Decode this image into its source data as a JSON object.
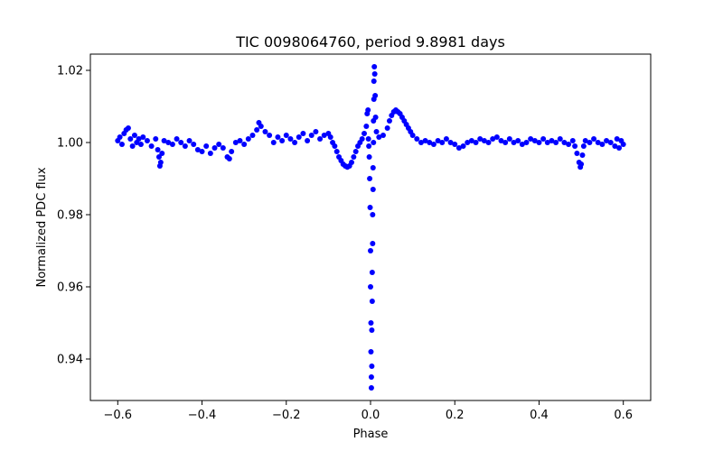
{
  "chart_data": {
    "type": "scatter",
    "title": "TIC 0098064760, period 9.8981 days",
    "xlabel": "Phase",
    "ylabel": "Normalized PDC flux",
    "xlim": [
      -0.665,
      0.665
    ],
    "ylim": [
      0.9285,
      1.0245
    ],
    "grid": false,
    "marker_color": "#0000ff",
    "x_ticks": [
      -0.6,
      -0.4,
      -0.2,
      0.0,
      0.2,
      0.4,
      0.6
    ],
    "x_tick_labels": [
      "−0.6",
      "−0.4",
      "−0.2",
      "0.0",
      "0.2",
      "0.4",
      "0.6"
    ],
    "y_ticks": [
      0.94,
      0.96,
      0.98,
      1.0,
      1.02
    ],
    "y_tick_labels": [
      "0.94",
      "0.96",
      "0.98",
      "1.00",
      "1.02"
    ],
    "series": [
      {
        "name": "phase-folded light curve",
        "description_of_shape": "flat baseline near 1.000 with scatter; primary eclipse at phase 0.0 reaching ~0.932; flare-like spike at phase ~0.0 to ~1.021; dip near phase -0.05 (~0.993); bump near phase 0.06 (~1.009); small dips near phase -0.5 and 0.5 (~0.993)",
        "points": [
          [
            -0.6,
            1.0005
          ],
          [
            -0.595,
            1.0015
          ],
          [
            -0.59,
            0.9995
          ],
          [
            -0.585,
            1.0025
          ],
          [
            -0.58,
            1.0035
          ],
          [
            -0.575,
            1.004
          ],
          [
            -0.57,
            1.001
          ],
          [
            -0.565,
            0.999
          ],
          [
            -0.56,
            1.002
          ],
          [
            -0.555,
            1.0
          ],
          [
            -0.55,
            1.001
          ],
          [
            -0.545,
            0.9995
          ],
          [
            -0.54,
            1.0015
          ],
          [
            -0.53,
            1.0005
          ],
          [
            -0.52,
            0.999
          ],
          [
            -0.51,
            1.001
          ],
          [
            -0.505,
            0.998
          ],
          [
            -0.502,
            0.996
          ],
          [
            -0.5,
            0.9935
          ],
          [
            -0.498,
            0.9945
          ],
          [
            -0.495,
            0.997
          ],
          [
            -0.49,
            1.0005
          ],
          [
            -0.48,
            1.0
          ],
          [
            -0.47,
            0.9995
          ],
          [
            -0.46,
            1.001
          ],
          [
            -0.45,
            1.0
          ],
          [
            -0.44,
            0.999
          ],
          [
            -0.43,
            1.0005
          ],
          [
            -0.42,
            0.9995
          ],
          [
            -0.41,
            0.998
          ],
          [
            -0.4,
            0.9975
          ],
          [
            -0.39,
            0.999
          ],
          [
            -0.38,
            0.997
          ],
          [
            -0.37,
            0.9985
          ],
          [
            -0.36,
            0.9995
          ],
          [
            -0.35,
            0.9985
          ],
          [
            -0.34,
            0.996
          ],
          [
            -0.335,
            0.9955
          ],
          [
            -0.33,
            0.9975
          ],
          [
            -0.32,
            1.0
          ],
          [
            -0.31,
            1.0005
          ],
          [
            -0.3,
            0.9995
          ],
          [
            -0.29,
            1.001
          ],
          [
            -0.28,
            1.002
          ],
          [
            -0.27,
            1.0035
          ],
          [
            -0.265,
            1.0055
          ],
          [
            -0.26,
            1.0045
          ],
          [
            -0.25,
            1.003
          ],
          [
            -0.24,
            1.002
          ],
          [
            -0.23,
            1.0
          ],
          [
            -0.22,
            1.0015
          ],
          [
            -0.21,
            1.0005
          ],
          [
            -0.2,
            1.002
          ],
          [
            -0.19,
            1.001
          ],
          [
            -0.18,
            1.0
          ],
          [
            -0.17,
            1.0015
          ],
          [
            -0.16,
            1.0025
          ],
          [
            -0.15,
            1.0005
          ],
          [
            -0.14,
            1.002
          ],
          [
            -0.13,
            1.003
          ],
          [
            -0.12,
            1.001
          ],
          [
            -0.11,
            1.002
          ],
          [
            -0.1,
            1.0025
          ],
          [
            -0.095,
            1.0015
          ],
          [
            -0.09,
            1.0
          ],
          [
            -0.085,
            0.999
          ],
          [
            -0.08,
            0.9975
          ],
          [
            -0.075,
            0.996
          ],
          [
            -0.07,
            0.995
          ],
          [
            -0.065,
            0.994
          ],
          [
            -0.06,
            0.9935
          ],
          [
            -0.055,
            0.9932
          ],
          [
            -0.05,
            0.9935
          ],
          [
            -0.045,
            0.9945
          ],
          [
            -0.04,
            0.996
          ],
          [
            -0.035,
            0.9975
          ],
          [
            -0.03,
            0.999
          ],
          [
            -0.025,
            1.0
          ],
          [
            -0.02,
            1.001
          ],
          [
            -0.015,
            1.0025
          ],
          [
            -0.01,
            1.0045
          ],
          [
            -0.008,
            1.008
          ],
          [
            -0.006,
            1.009
          ],
          [
            -0.005,
            1.001
          ],
          [
            -0.004,
            0.999
          ],
          [
            -0.003,
            0.996
          ],
          [
            -0.002,
            0.99
          ],
          [
            -0.001,
            0.982
          ],
          [
            0.0,
            0.97
          ],
          [
            0.0,
            0.96
          ],
          [
            0.001,
            0.95
          ],
          [
            0.001,
            0.942
          ],
          [
            0.002,
            0.935
          ],
          [
            0.002,
            0.932
          ],
          [
            0.003,
            0.938
          ],
          [
            0.003,
            0.948
          ],
          [
            0.004,
            0.956
          ],
          [
            0.004,
            0.964
          ],
          [
            0.005,
            0.972
          ],
          [
            0.005,
            0.98
          ],
          [
            0.006,
            0.987
          ],
          [
            0.006,
            0.993
          ],
          [
            0.007,
            1.0
          ],
          [
            0.007,
            1.006
          ],
          [
            0.008,
            1.012
          ],
          [
            0.008,
            1.017
          ],
          [
            0.009,
            1.021
          ],
          [
            0.01,
            1.019
          ],
          [
            0.011,
            1.013
          ],
          [
            0.012,
            1.007
          ],
          [
            0.014,
            1.003
          ],
          [
            0.02,
            1.0015
          ],
          [
            0.03,
            1.002
          ],
          [
            0.04,
            1.004
          ],
          [
            0.045,
            1.006
          ],
          [
            0.05,
            1.0075
          ],
          [
            0.055,
            1.0085
          ],
          [
            0.06,
            1.009
          ],
          [
            0.065,
            1.0085
          ],
          [
            0.07,
            1.008
          ],
          [
            0.075,
            1.007
          ],
          [
            0.08,
            1.006
          ],
          [
            0.085,
            1.005
          ],
          [
            0.09,
            1.004
          ],
          [
            0.095,
            1.003
          ],
          [
            0.1,
            1.002
          ],
          [
            0.11,
            1.001
          ],
          [
            0.12,
            1.0
          ],
          [
            0.13,
            1.0005
          ],
          [
            0.14,
            1.0
          ],
          [
            0.15,
            0.9995
          ],
          [
            0.16,
            1.0005
          ],
          [
            0.17,
            1.0
          ],
          [
            0.18,
            1.001
          ],
          [
            0.19,
            1.0
          ],
          [
            0.2,
            0.9995
          ],
          [
            0.21,
            0.9985
          ],
          [
            0.22,
            0.999
          ],
          [
            0.23,
            1.0
          ],
          [
            0.24,
            1.0005
          ],
          [
            0.25,
            1.0
          ],
          [
            0.26,
            1.001
          ],
          [
            0.27,
            1.0005
          ],
          [
            0.28,
            1.0
          ],
          [
            0.29,
            1.001
          ],
          [
            0.3,
            1.0015
          ],
          [
            0.31,
            1.0005
          ],
          [
            0.32,
            1.0
          ],
          [
            0.33,
            1.001
          ],
          [
            0.34,
            1.0
          ],
          [
            0.35,
            1.0005
          ],
          [
            0.36,
            0.9995
          ],
          [
            0.37,
            1.0
          ],
          [
            0.38,
            1.001
          ],
          [
            0.39,
            1.0005
          ],
          [
            0.4,
            1.0
          ],
          [
            0.41,
            1.001
          ],
          [
            0.42,
            1.0
          ],
          [
            0.43,
            1.0005
          ],
          [
            0.44,
            1.0
          ],
          [
            0.45,
            1.001
          ],
          [
            0.46,
            1.0
          ],
          [
            0.47,
            0.9995
          ],
          [
            0.48,
            1.0005
          ],
          [
            0.485,
            0.999
          ],
          [
            0.49,
            0.997
          ],
          [
            0.495,
            0.9945
          ],
          [
            0.498,
            0.9932
          ],
          [
            0.5,
            0.994
          ],
          [
            0.503,
            0.9965
          ],
          [
            0.506,
            0.999
          ],
          [
            0.51,
            1.0005
          ],
          [
            0.52,
            1.0
          ],
          [
            0.53,
            1.001
          ],
          [
            0.54,
            1.0
          ],
          [
            0.55,
            0.9995
          ],
          [
            0.56,
            1.0005
          ],
          [
            0.57,
            1.0
          ],
          [
            0.58,
            0.999
          ],
          [
            0.585,
            1.001
          ],
          [
            0.59,
            0.9985
          ],
          [
            0.595,
            1.0005
          ],
          [
            0.6,
            0.9995
          ]
        ]
      }
    ]
  }
}
